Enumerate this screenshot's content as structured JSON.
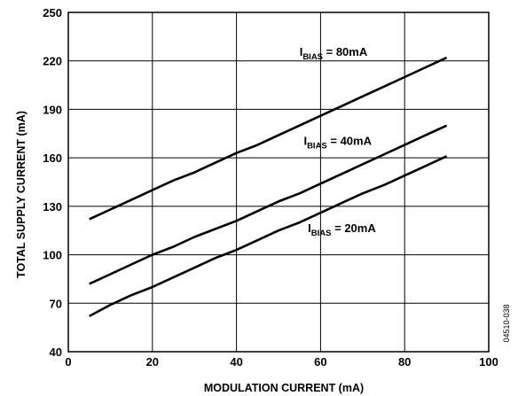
{
  "chart_data": {
    "type": "line",
    "xlabel": "MODULATION CURRENT (mA)",
    "ylabel": "TOTAL SUPPLY CURRENT (mA)",
    "xlim": [
      0,
      100
    ],
    "ylim": [
      40,
      250
    ],
    "xticks": [
      0,
      20,
      40,
      60,
      80,
      100
    ],
    "yticks": [
      40,
      70,
      100,
      130,
      160,
      190,
      220,
      250
    ],
    "grid": true,
    "series": [
      {
        "name": "IBIAS = 80mA",
        "label_main": "I",
        "label_sub": "BIAS",
        "label_rest": " = 80mA",
        "x": [
          5,
          10,
          15,
          20,
          25,
          30,
          35,
          40,
          45,
          50,
          55,
          60,
          65,
          70,
          75,
          80,
          85,
          90
        ],
        "y": [
          122,
          128,
          134,
          140,
          146,
          151,
          157,
          163,
          168,
          174,
          180,
          186,
          192,
          198,
          204,
          210,
          216,
          222
        ]
      },
      {
        "name": "IBIAS = 40mA",
        "label_main": "I",
        "label_sub": "BIAS",
        "label_rest": " = 40mA",
        "x": [
          5,
          10,
          15,
          20,
          25,
          30,
          35,
          40,
          45,
          50,
          55,
          60,
          65,
          70,
          75,
          80,
          85,
          90
        ],
        "y": [
          82,
          88,
          94,
          100,
          105,
          111,
          116,
          121,
          127,
          133,
          138,
          144,
          150,
          156,
          162,
          168,
          174,
          180
        ]
      },
      {
        "name": "IBIAS = 20mA",
        "label_main": "I",
        "label_sub": "BIAS",
        "label_rest": " = 20mA",
        "x": [
          5,
          10,
          15,
          20,
          25,
          30,
          35,
          40,
          45,
          50,
          55,
          60,
          65,
          70,
          75,
          80,
          85,
          90
        ],
        "y": [
          62,
          69,
          75,
          80,
          86,
          92,
          98,
          103,
          109,
          115,
          120,
          126,
          132,
          138,
          143,
          149,
          155,
          161
        ]
      }
    ],
    "figure_code": "04510-038"
  }
}
